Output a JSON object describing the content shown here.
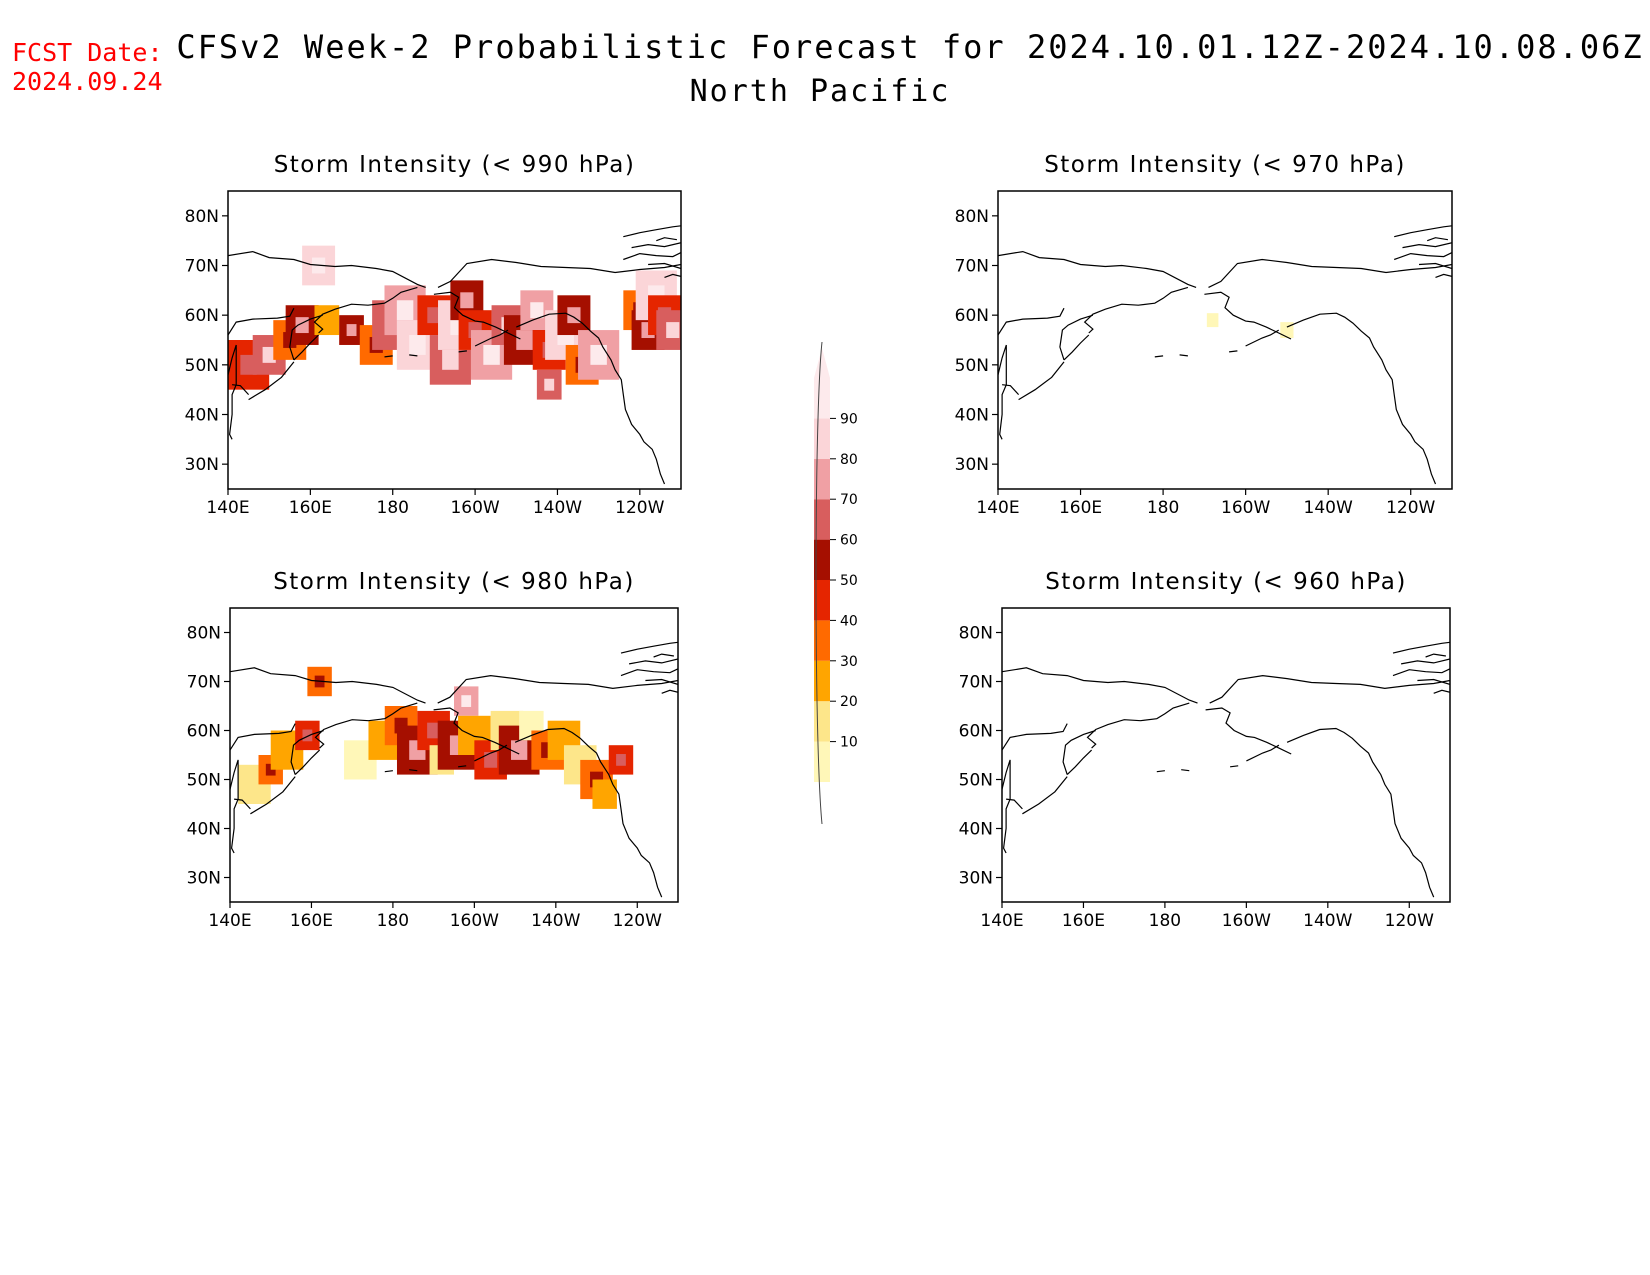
{
  "header": {
    "fcst_label": "FCST Date:",
    "fcst_date": "2024.09.24",
    "title": "CFSv2 Week-2 Probabilistic Forecast for 2024.10.01.12Z-2024.10.08.06Z",
    "region": "North Pacific"
  },
  "panels": [
    {
      "id": "p990",
      "title": "Storm Intensity (< 990 hPa)",
      "level": "high"
    },
    {
      "id": "p970",
      "title": "Storm Intensity (< 970 hPa)",
      "level": "trace"
    },
    {
      "id": "p980",
      "title": "Storm Intensity (< 980 hPa)",
      "level": "medium"
    },
    {
      "id": "p960",
      "title": "Storm Intensity (< 960 hPa)",
      "level": "none"
    }
  ],
  "axes": {
    "lat_labels": [
      "80N",
      "70N",
      "60N",
      "50N",
      "40N",
      "30N"
    ],
    "lon_labels": [
      "140E",
      "160E",
      "180",
      "160W",
      "140W",
      "120W"
    ]
  },
  "colorbar": {
    "levels": [
      "10",
      "20",
      "30",
      "40",
      "50",
      "60",
      "70",
      "80",
      "90"
    ],
    "colors": [
      "#fff7b8",
      "#fde68a",
      "#ffa500",
      "#ff6a00",
      "#e52500",
      "#a50f00",
      "#d85e5e",
      "#f0a0a4",
      "#fbd5d8",
      "#fdeaec"
    ]
  }
}
